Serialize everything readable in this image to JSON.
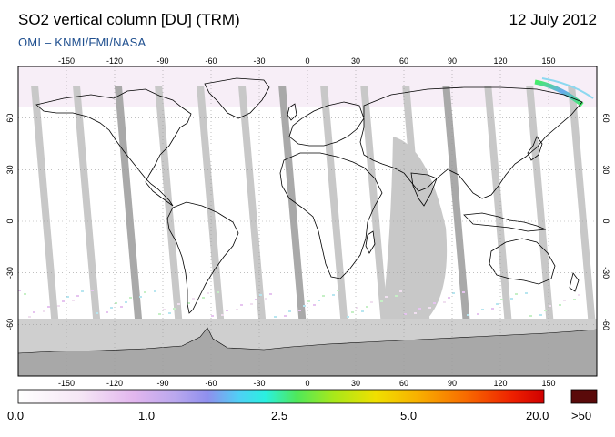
{
  "header": {
    "title": "SO2 vertical column [DU] (TRM)",
    "date": "12 July 2012",
    "subtitle": "OMI  –  KNMI/FMI/NASA"
  },
  "map": {
    "lon_ticks": [
      "-150",
      "-120",
      "-90",
      "-60",
      "-30",
      "0",
      "30",
      "60",
      "90",
      "120",
      "150"
    ],
    "lat_ticks": [
      "60",
      "30",
      "0",
      "-30",
      "-60"
    ],
    "colors": {
      "ocean": "#ffffff",
      "orbit_gap": "#c8c8c8",
      "orbit_gap_dark": "#a9a9a9",
      "antarctic": "#a8a8a8",
      "southern_band": "#cfcfcf",
      "coast": "#000000",
      "grid": "#9a9a9a"
    }
  },
  "colorbar": {
    "labels": [
      "0.0",
      "1.0",
      "2.5",
      "5.0",
      "20.0"
    ],
    "overflow_label": ">50",
    "overflow_color": "#5a0a0a"
  }
}
